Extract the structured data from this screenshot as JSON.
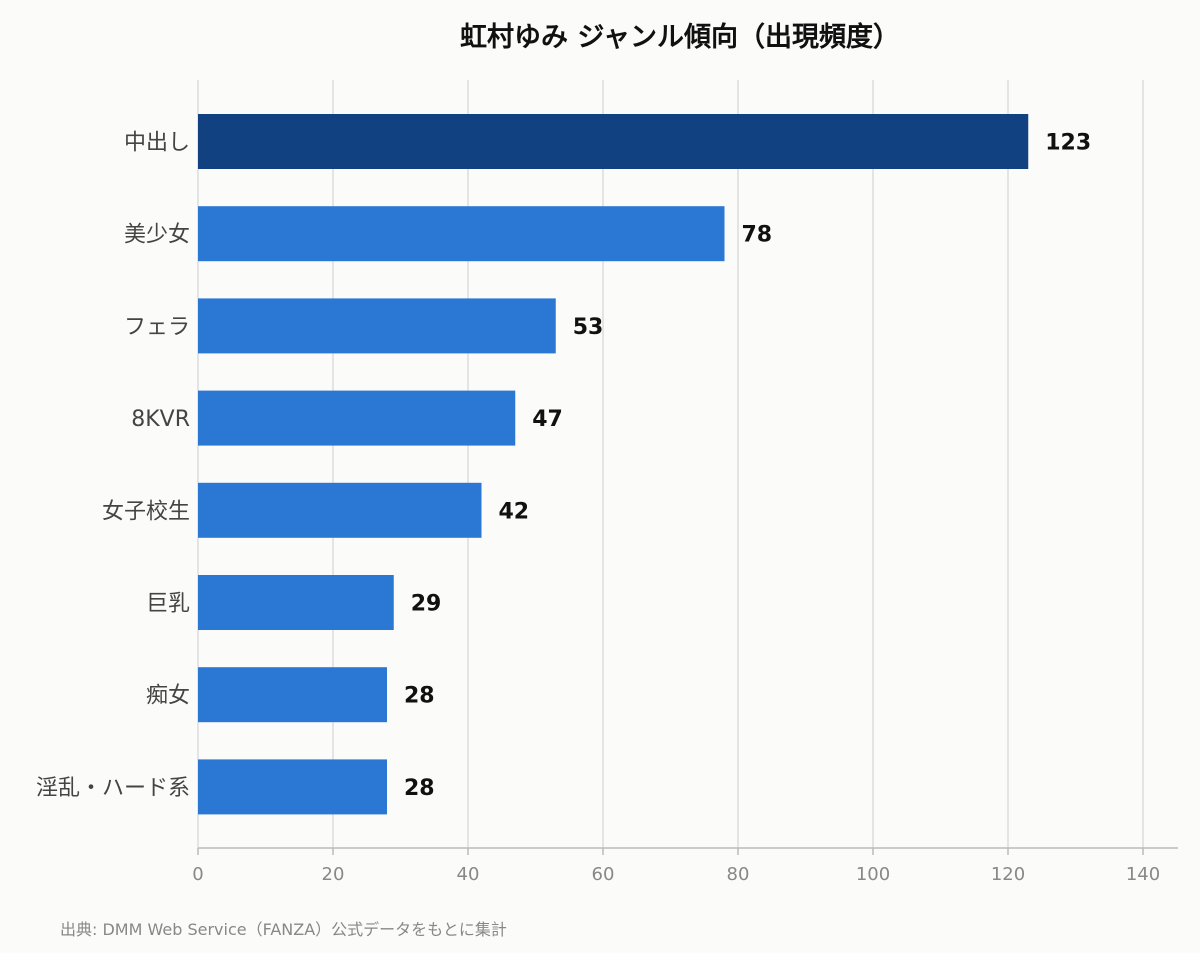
{
  "chart_data": {
    "type": "bar",
    "orientation": "horizontal",
    "title": "虹村ゆみ ジャンル傾向（出現頻度）",
    "categories": [
      "中出し",
      "美少女",
      "フェラ",
      "8KVR",
      "女子校生",
      "巨乳",
      "痴女",
      "淫乱・ハード系"
    ],
    "values": [
      123,
      78,
      53,
      47,
      42,
      29,
      28,
      28
    ],
    "xlim": [
      0,
      140
    ],
    "xticks": [
      0,
      20,
      40,
      60,
      80,
      100,
      120,
      140
    ],
    "xlabel": "",
    "ylabel": "",
    "grid": true,
    "legend": "none",
    "colors": {
      "highlight": "#114180",
      "default": "#2b78d4",
      "background": "#fbfbfa"
    },
    "highlight_index": 0
  },
  "footer": {
    "source": "出典: DMM Web Service（FANZA）公式データをもとに集計"
  }
}
